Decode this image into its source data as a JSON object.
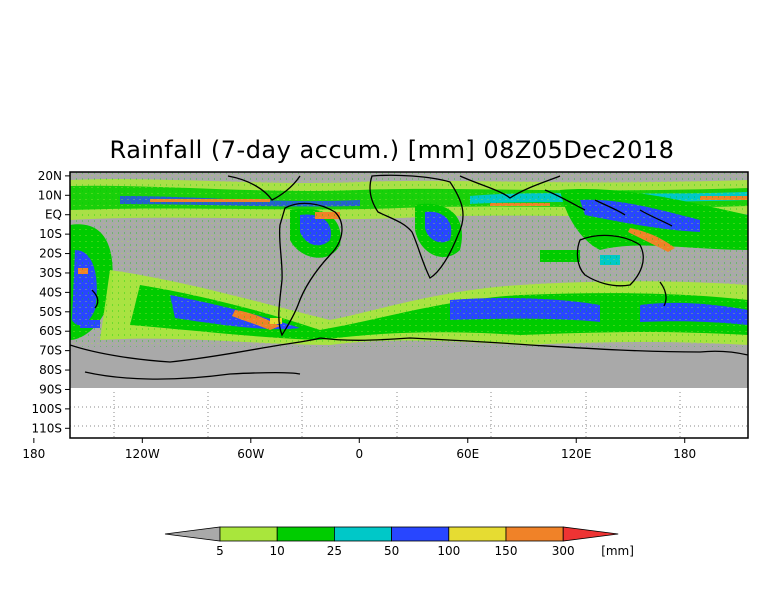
{
  "title": "Rainfall (7-day accum.) [mm] 08Z05Dec2018",
  "map": {
    "projection": "equirectangular",
    "lon_range": [
      -160,
      215
    ],
    "lat_range": [
      -115,
      22
    ],
    "data_lat_range": [
      -90,
      22
    ],
    "lat_ticks": [
      "20N",
      "10N",
      "EQ",
      "10S",
      "20S",
      "30S",
      "40S",
      "50S",
      "60S",
      "70S",
      "80S",
      "90S",
      "100S",
      "110S"
    ],
    "lat_values": [
      20,
      10,
      0,
      -10,
      -20,
      -30,
      -40,
      -50,
      -60,
      -70,
      -80,
      -90,
      -100,
      -110
    ],
    "lon_ticks": [
      "180",
      "120W",
      "60W",
      "0",
      "60E",
      "120E",
      "180"
    ],
    "lon_values": [
      -180,
      -120,
      -60,
      0,
      60,
      120,
      180
    ],
    "no_data_color": "#a9a9a9",
    "background_color": "#ffffff",
    "grid": "dotted, below 90S only"
  },
  "colorbar": {
    "unit_label": "[mm]",
    "below_color": "#a9a9a9",
    "above_color": "#ee3333",
    "levels": [
      "5",
      "10",
      "25",
      "50",
      "100",
      "150",
      "300"
    ],
    "colors": [
      "#a9e63c",
      "#00cc00",
      "#00c8c8",
      "#2846ff",
      "#e6dc32",
      "#f08228"
    ]
  }
}
